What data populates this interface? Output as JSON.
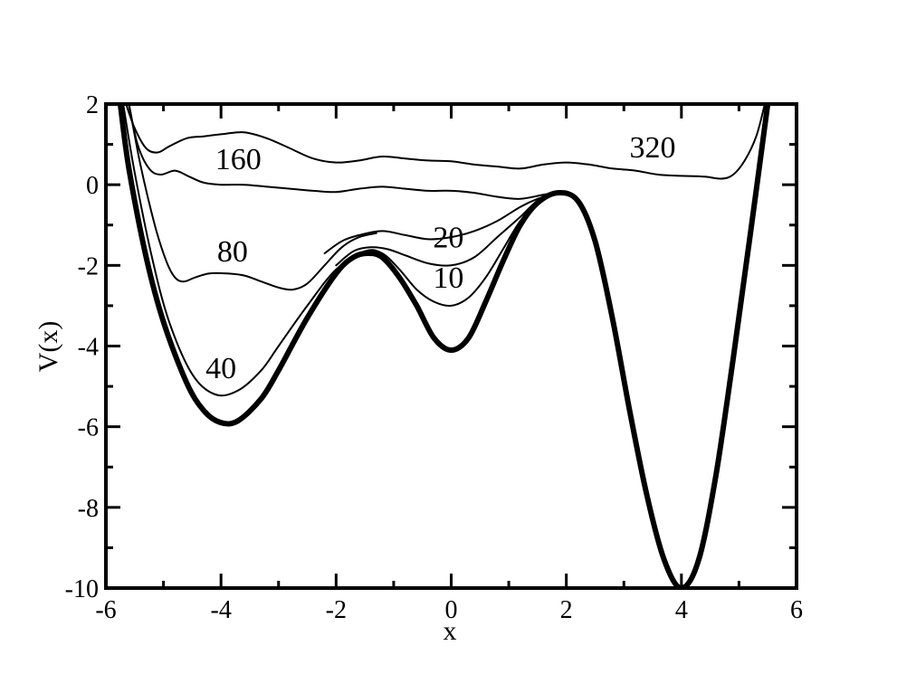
{
  "chart_data": {
    "type": "line",
    "title": "",
    "xlabel": "x",
    "ylabel": "V(x)",
    "xlim": [
      -6,
      6
    ],
    "ylim": [
      -10,
      2
    ],
    "grid": false,
    "x_ticks": [
      -6,
      -4,
      -2,
      0,
      2,
      4,
      6
    ],
    "x_tick_labels": [
      "-6",
      "-4",
      "-2",
      "0",
      "2",
      "4",
      "6"
    ],
    "y_ticks": [
      -10,
      -8,
      -6,
      -4,
      -2,
      0,
      2
    ],
    "y_tick_labels": [
      "-10",
      "-8",
      "-6",
      "-4",
      "-2",
      "0",
      "2"
    ],
    "series": [
      {
        "points": [
          [
            -5.75,
            2.0
          ],
          [
            -5.6,
            0.4
          ],
          [
            -5.3,
            -1.8
          ],
          [
            -5.0,
            -3.4
          ],
          [
            -4.6,
            -4.9
          ],
          [
            -4.3,
            -5.6
          ],
          [
            -4.0,
            -5.9
          ],
          [
            -3.7,
            -5.85
          ],
          [
            -3.3,
            -5.3
          ],
          [
            -3.0,
            -4.6
          ],
          [
            -2.5,
            -3.3
          ],
          [
            -2.0,
            -2.2
          ],
          [
            -1.7,
            -1.8
          ],
          [
            -1.45,
            -1.7
          ],
          [
            -1.2,
            -1.8
          ],
          [
            -0.9,
            -2.3
          ],
          [
            -0.6,
            -3.0
          ],
          [
            -0.3,
            -3.8
          ],
          [
            0.0,
            -4.1
          ],
          [
            0.3,
            -3.8
          ],
          [
            0.6,
            -2.9
          ],
          [
            0.9,
            -1.9
          ],
          [
            1.2,
            -1.0
          ],
          [
            1.5,
            -0.45
          ],
          [
            1.85,
            -0.2
          ],
          [
            2.2,
            -0.4
          ],
          [
            2.5,
            -1.4
          ],
          [
            2.8,
            -3.3
          ],
          [
            3.1,
            -5.6
          ],
          [
            3.4,
            -7.7
          ],
          [
            3.7,
            -9.3
          ],
          [
            4.0,
            -10.0
          ],
          [
            4.3,
            -9.3
          ],
          [
            4.6,
            -7.2
          ],
          [
            4.9,
            -4.3
          ],
          [
            5.2,
            -1.2
          ],
          [
            5.5,
            2.0
          ]
        ]
      },
      {
        "label": "10",
        "points": [
          [
            -5.7,
            2.0
          ],
          [
            -5.5,
            0.3
          ],
          [
            -5.2,
            -1.8
          ],
          [
            -4.9,
            -3.4
          ],
          [
            -4.5,
            -4.7
          ],
          [
            -4.1,
            -5.2
          ],
          [
            -3.7,
            -5.1
          ],
          [
            -3.3,
            -4.6
          ],
          [
            -3.0,
            -4.0
          ],
          [
            -2.5,
            -3.0
          ],
          [
            -2.0,
            -2.1
          ],
          [
            -1.5,
            -1.65
          ],
          [
            -1.2,
            -1.7
          ],
          [
            -0.9,
            -2.1
          ],
          [
            -0.6,
            -2.6
          ],
          [
            -0.3,
            -2.9
          ],
          [
            0.0,
            -3.0
          ],
          [
            0.3,
            -2.8
          ],
          [
            0.6,
            -2.3
          ],
          [
            0.9,
            -1.6
          ],
          [
            1.2,
            -0.9
          ],
          [
            1.5,
            -0.45
          ],
          [
            1.85,
            -0.2
          ]
        ]
      },
      {
        "label": "20",
        "points": [
          [
            -2.0,
            -2.0
          ],
          [
            -1.7,
            -1.65
          ],
          [
            -1.4,
            -1.55
          ],
          [
            -1.1,
            -1.6
          ],
          [
            -0.8,
            -1.75
          ],
          [
            -0.4,
            -1.95
          ],
          [
            0.0,
            -2.0
          ],
          [
            0.4,
            -1.8
          ],
          [
            0.8,
            -1.3
          ],
          [
            1.2,
            -0.8
          ],
          [
            1.5,
            -0.4
          ],
          [
            1.85,
            -0.2
          ]
        ]
      },
      {
        "points": [
          [
            -2.2,
            -1.7
          ],
          [
            -1.9,
            -1.4
          ],
          [
            -1.6,
            -1.25
          ],
          [
            -1.2,
            -1.15
          ],
          [
            -0.8,
            -1.25
          ],
          [
            -0.4,
            -1.35
          ],
          [
            0.0,
            -1.3
          ],
          [
            0.4,
            -1.15
          ],
          [
            0.8,
            -0.9
          ],
          [
            1.2,
            -0.55
          ],
          [
            1.5,
            -0.35
          ],
          [
            1.85,
            -0.2
          ]
        ]
      },
      {
        "label": "80",
        "points": [
          [
            -5.6,
            2.0
          ],
          [
            -5.4,
            0.5
          ],
          [
            -5.15,
            -1.0
          ],
          [
            -4.95,
            -1.9
          ],
          [
            -4.8,
            -2.3
          ],
          [
            -4.65,
            -2.4
          ],
          [
            -4.45,
            -2.3
          ],
          [
            -4.2,
            -2.2
          ],
          [
            -3.9,
            -2.2
          ],
          [
            -3.6,
            -2.25
          ],
          [
            -3.3,
            -2.4
          ],
          [
            -3.0,
            -2.55
          ],
          [
            -2.75,
            -2.6
          ],
          [
            -2.5,
            -2.45
          ],
          [
            -2.2,
            -2.0
          ],
          [
            -1.9,
            -1.55
          ],
          [
            -1.6,
            -1.3
          ],
          [
            -1.3,
            -1.2
          ]
        ]
      },
      {
        "label": "160",
        "points": [
          [
            -5.6,
            2.0
          ],
          [
            -5.45,
            1.0
          ],
          [
            -5.25,
            0.4
          ],
          [
            -5.05,
            0.25
          ],
          [
            -4.8,
            0.35
          ],
          [
            -4.55,
            0.2
          ],
          [
            -4.3,
            0.05
          ],
          [
            -4.0,
            0.0
          ],
          [
            -3.6,
            0.0
          ],
          [
            -3.2,
            -0.05
          ],
          [
            -2.8,
            -0.1
          ],
          [
            -2.4,
            -0.15
          ],
          [
            -2.0,
            -0.18
          ],
          [
            -1.6,
            -0.1
          ],
          [
            -1.2,
            -0.05
          ],
          [
            -0.8,
            -0.1
          ],
          [
            -0.4,
            -0.15
          ],
          [
            0.0,
            -0.15
          ],
          [
            0.4,
            -0.2
          ],
          [
            0.8,
            -0.3
          ],
          [
            1.2,
            -0.35
          ],
          [
            1.6,
            -0.25
          ],
          [
            1.85,
            -0.2
          ]
        ]
      },
      {
        "label": "320",
        "points": [
          [
            -5.65,
            2.0
          ],
          [
            -5.5,
            1.4
          ],
          [
            -5.3,
            0.9
          ],
          [
            -5.1,
            0.8
          ],
          [
            -4.9,
            0.95
          ],
          [
            -4.6,
            1.15
          ],
          [
            -4.3,
            1.2
          ],
          [
            -4.0,
            1.25
          ],
          [
            -3.6,
            1.3
          ],
          [
            -3.2,
            1.15
          ],
          [
            -2.8,
            0.9
          ],
          [
            -2.4,
            0.65
          ],
          [
            -2.0,
            0.55
          ],
          [
            -1.6,
            0.6
          ],
          [
            -1.2,
            0.7
          ],
          [
            -0.8,
            0.65
          ],
          [
            -0.4,
            0.6
          ],
          [
            0.0,
            0.58
          ],
          [
            0.4,
            0.5
          ],
          [
            0.8,
            0.45
          ],
          [
            1.2,
            0.4
          ],
          [
            1.6,
            0.5
          ],
          [
            2.0,
            0.55
          ],
          [
            2.4,
            0.5
          ],
          [
            2.8,
            0.4
          ],
          [
            3.2,
            0.35
          ],
          [
            3.6,
            0.25
          ],
          [
            4.0,
            0.22
          ],
          [
            4.4,
            0.2
          ],
          [
            4.7,
            0.15
          ],
          [
            4.9,
            0.25
          ],
          [
            5.1,
            0.6
          ],
          [
            5.3,
            1.2
          ],
          [
            5.45,
            2.0
          ]
        ]
      }
    ],
    "annotations": [
      {
        "text": "320",
        "x": 3.5,
        "y": 0.68
      },
      {
        "text": "160",
        "x": -3.7,
        "y": 0.38
      },
      {
        "text": "80",
        "x": -3.8,
        "y": -1.9
      },
      {
        "text": "20",
        "x": -0.05,
        "y": -1.55
      },
      {
        "text": "10",
        "x": -0.05,
        "y": -2.55
      },
      {
        "text": "40",
        "x": -4.0,
        "y": -4.8
      }
    ]
  }
}
